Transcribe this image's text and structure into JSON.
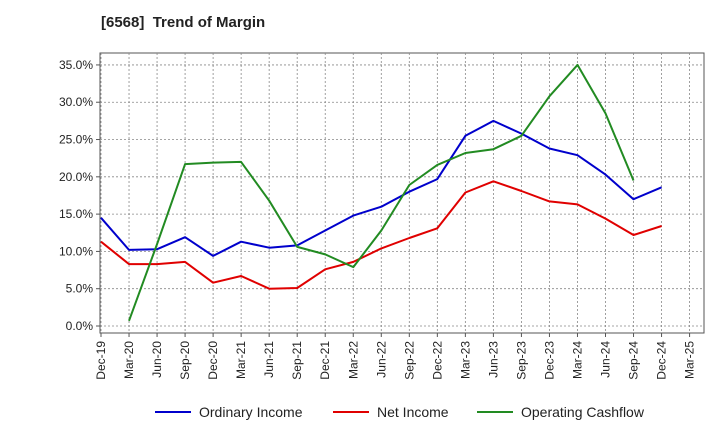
{
  "title": "[6568]  Trend of Margin",
  "chart_data": {
    "type": "line",
    "title": "[6568]  Trend of Margin",
    "xlabel": "",
    "ylabel": "",
    "categories": [
      "Dec-19",
      "Mar-20",
      "Jun-20",
      "Sep-20",
      "Dec-20",
      "Mar-21",
      "Jun-21",
      "Sep-21",
      "Dec-21",
      "Mar-22",
      "Jun-22",
      "Sep-22",
      "Dec-22",
      "Mar-23",
      "Jun-23",
      "Sep-23",
      "Dec-23",
      "Mar-24",
      "Jun-24",
      "Sep-24",
      "Dec-24",
      "Mar-25"
    ],
    "ylim": [
      0,
      35
    ],
    "yticks": [
      0,
      5,
      10,
      15,
      20,
      25,
      30,
      35
    ],
    "ytick_labels": [
      "0.0%",
      "5.0%",
      "10.0%",
      "15.0%",
      "20.0%",
      "25.0%",
      "30.0%",
      "35.0%"
    ],
    "grid": true,
    "legend_position": "bottom",
    "series": [
      {
        "name": "Ordinary Income",
        "color": "#0000cc",
        "values": [
          14.5,
          10.2,
          10.3,
          11.9,
          9.4,
          11.3,
          10.5,
          10.8,
          12.8,
          14.8,
          16.0,
          18.0,
          19.7,
          25.5,
          27.5,
          25.8,
          23.8,
          22.9,
          20.3,
          17.0,
          18.6,
          null
        ]
      },
      {
        "name": "Net Income",
        "color": "#e00000",
        "values": [
          11.3,
          8.3,
          8.3,
          8.6,
          5.8,
          6.7,
          5.0,
          5.1,
          7.6,
          8.6,
          10.4,
          11.8,
          13.1,
          17.9,
          19.4,
          18.1,
          16.7,
          16.3,
          14.4,
          12.2,
          13.4,
          null
        ]
      },
      {
        "name": "Operating Cashflow",
        "color": "#228b22",
        "values": [
          null,
          0.7,
          11.0,
          21.7,
          21.9,
          22.0,
          16.8,
          10.6,
          9.6,
          7.9,
          12.8,
          18.9,
          21.6,
          23.2,
          23.7,
          25.5,
          30.8,
          35.0,
          28.5,
          19.5,
          null,
          null
        ]
      }
    ]
  }
}
